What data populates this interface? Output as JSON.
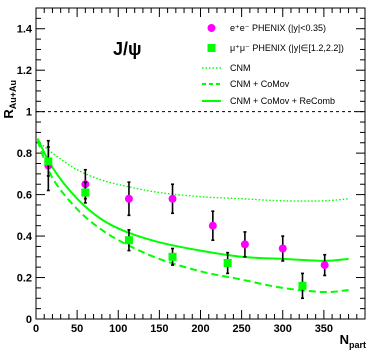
{
  "chart_data": {
    "type": "scatter",
    "title": "J/ψ",
    "ylabel": {
      "main": "R",
      "sub": "Au+Au"
    },
    "xlabel": {
      "main": "N",
      "sub": "part"
    },
    "xlim": [
      0,
      400
    ],
    "ylim": [
      0,
      1.5
    ],
    "x_ticks": [
      0,
      50,
      100,
      150,
      200,
      250,
      300,
      350
    ],
    "y_ticks": [
      0,
      0.2,
      0.4,
      0.6,
      0.8,
      1,
      1.2,
      1.4
    ],
    "x_tick_labels": [
      "0",
      "50",
      "100",
      "150",
      "200",
      "250",
      "300",
      "350"
    ],
    "y_tick_labels": [
      "0",
      "0.2",
      "0.4",
      "0.6",
      "0.8",
      "1",
      "1.2",
      "1.4"
    ],
    "reference_line": {
      "y": 1,
      "style": "dashed"
    },
    "legend_position": "top-right",
    "series": [
      {
        "name": "e⁺e⁻ PHENIX (|y|<0.35)",
        "kind": "points",
        "marker": "circle",
        "color": "#ff00ff",
        "points": [
          {
            "x": 15,
            "y": 0.74,
            "err": 0.12
          },
          {
            "x": 60,
            "y": 0.65,
            "err": 0.07
          },
          {
            "x": 113,
            "y": 0.58,
            "err": 0.08
          },
          {
            "x": 166,
            "y": 0.58,
            "err": 0.07
          },
          {
            "x": 215,
            "y": 0.45,
            "err": 0.07
          },
          {
            "x": 254,
            "y": 0.36,
            "err": 0.06
          },
          {
            "x": 300,
            "y": 0.34,
            "err": 0.06
          },
          {
            "x": 351,
            "y": 0.26,
            "err": 0.05
          }
        ]
      },
      {
        "name": "μ⁺μ⁻ PHENIX (|y|∈[1.2,2.2])",
        "kind": "points",
        "marker": "square",
        "color": "#00ff00",
        "points": [
          {
            "x": 15,
            "y": 0.76,
            "err": 0.07
          },
          {
            "x": 60,
            "y": 0.61,
            "err": 0.05
          },
          {
            "x": 113,
            "y": 0.38,
            "err": 0.05
          },
          {
            "x": 166,
            "y": 0.3,
            "err": 0.04
          },
          {
            "x": 233,
            "y": 0.27,
            "err": 0.05
          },
          {
            "x": 324,
            "y": 0.16,
            "err": 0.06
          }
        ]
      },
      {
        "name": "CNM",
        "kind": "line",
        "style": "dotted",
        "color": "#00ff00",
        "x": [
          2,
          20,
          50,
          80,
          110,
          150,
          200,
          250,
          300,
          350,
          380
        ],
        "y": [
          0.86,
          0.8,
          0.72,
          0.67,
          0.64,
          0.61,
          0.59,
          0.58,
          0.57,
          0.57,
          0.58
        ]
      },
      {
        "name": "CNM + CoMov",
        "kind": "line",
        "style": "dashed",
        "color": "#00ff00",
        "x": [
          2,
          20,
          50,
          80,
          110,
          150,
          200,
          250,
          300,
          350,
          380
        ],
        "y": [
          0.86,
          0.68,
          0.53,
          0.43,
          0.36,
          0.29,
          0.23,
          0.19,
          0.15,
          0.13,
          0.14
        ]
      },
      {
        "name": "CNM + CoMov + ReComb",
        "kind": "line",
        "style": "solid",
        "color": "#00ff00",
        "x": [
          2,
          20,
          50,
          80,
          110,
          150,
          200,
          250,
          300,
          350,
          380
        ],
        "y": [
          0.87,
          0.73,
          0.58,
          0.48,
          0.42,
          0.37,
          0.33,
          0.3,
          0.29,
          0.28,
          0.29
        ]
      }
    ]
  }
}
